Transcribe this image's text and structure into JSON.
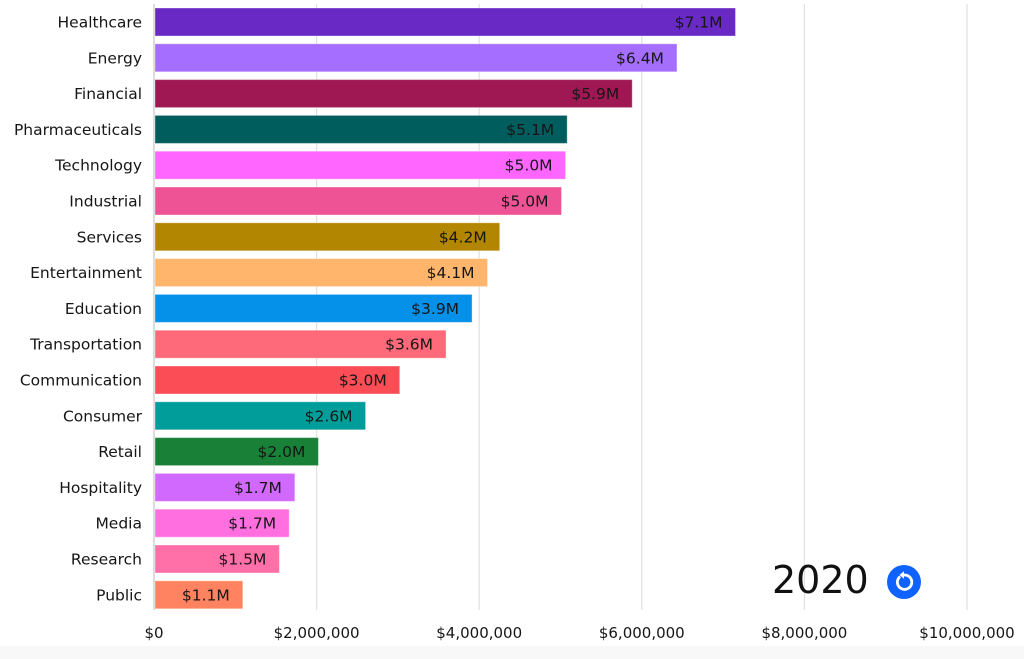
{
  "chart_data": {
    "type": "bar",
    "orientation": "horizontal",
    "title": "",
    "xlabel": "",
    "ylabel": "",
    "xlim": [
      0,
      10000000
    ],
    "grid": true,
    "x_ticks": [
      {
        "value": 0,
        "label": "$0"
      },
      {
        "value": 2000000,
        "label": "$2,000,000"
      },
      {
        "value": 4000000,
        "label": "$4,000,000"
      },
      {
        "value": 6000000,
        "label": "$6,000,000"
      },
      {
        "value": 8000000,
        "label": "$8,000,000"
      },
      {
        "value": 10000000,
        "label": "$10,000,000"
      }
    ],
    "bars": [
      {
        "category": "Healthcare",
        "value": 7140000,
        "label": "$7.1M",
        "color": "#6929c4"
      },
      {
        "category": "Energy",
        "value": 6420000,
        "label": "$6.4M",
        "color": "#a56eff"
      },
      {
        "category": "Financial",
        "value": 5870000,
        "label": "$5.9M",
        "color": "#9f1853"
      },
      {
        "category": "Pharmaceuticals",
        "value": 5070000,
        "label": "$5.1M",
        "color": "#005d5d"
      },
      {
        "category": "Technology",
        "value": 5050000,
        "label": "$5.0M",
        "color": "#ff66ff"
      },
      {
        "category": "Industrial",
        "value": 5000000,
        "label": "$5.0M",
        "color": "#ee5396"
      },
      {
        "category": "Services",
        "value": 4240000,
        "label": "$4.2M",
        "color": "#b28600"
      },
      {
        "category": "Entertainment",
        "value": 4090000,
        "label": "$4.1M",
        "color": "#ffb56b"
      },
      {
        "category": "Education",
        "value": 3900000,
        "label": "$3.9M",
        "color": "#0590ea"
      },
      {
        "category": "Transportation",
        "value": 3580000,
        "label": "$3.6M",
        "color": "#ff6a7a"
      },
      {
        "category": "Communication",
        "value": 3010000,
        "label": "$3.0M",
        "color": "#fa4d56"
      },
      {
        "category": "Consumer",
        "value": 2590000,
        "label": "$2.6M",
        "color": "#009d9a"
      },
      {
        "category": "Retail",
        "value": 2010000,
        "label": "$2.0M",
        "color": "#198038"
      },
      {
        "category": "Hospitality",
        "value": 1720000,
        "label": "$1.7M",
        "color": "#d269ff"
      },
      {
        "category": "Media",
        "value": 1650000,
        "label": "$1.7M",
        "color": "#ff6fe0"
      },
      {
        "category": "Research",
        "value": 1530000,
        "label": "$1.5M",
        "color": "#ff6fa8"
      },
      {
        "category": "Public",
        "value": 1080000,
        "label": "$1.1M",
        "color": "#ff8360"
      }
    ]
  },
  "overlay": {
    "year": "2020",
    "replay_icon": "replay-icon",
    "replay_color": "#0f62fe"
  }
}
